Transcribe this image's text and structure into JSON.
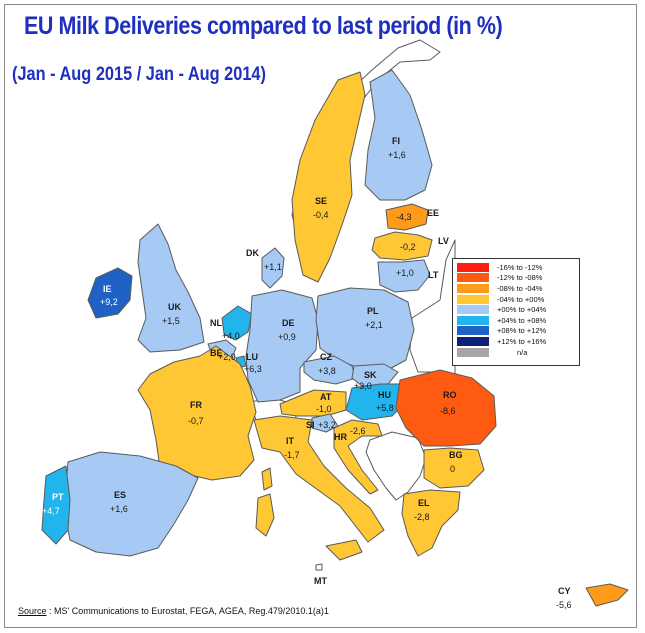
{
  "title": "EU Milk Deliveries compared to last period (in %)",
  "subtitle": "(Jan - Aug 2015 / Jan - Aug 2014)",
  "source": {
    "label": "Source",
    "text": ": MS' Communications to Eurostat, FEGA, AGEA, Reg.479/2010.1(a)1"
  },
  "legend": [
    {
      "label": "-16%  to  -12%",
      "color": "#ff1f10"
    },
    {
      "label": "-12%  to  -08%",
      "color": "#ff5a12"
    },
    {
      "label": "-08%  to  -04%",
      "color": "#ff9a1a"
    },
    {
      "label": "-04%  to  +00%",
      "color": "#ffc733"
    },
    {
      "label": "+00%  to  +04%",
      "color": "#a6caf4"
    },
    {
      "label": "+04%  to  +08%",
      "color": "#22b4ec"
    },
    {
      "label": "+08%  to  +12%",
      "color": "#1f61c4"
    },
    {
      "label": "+12%  to  +16%",
      "color": "#10207a"
    },
    {
      "label": "n/a",
      "color": "#a6a6a6"
    }
  ],
  "countries": [
    {
      "code": "FI",
      "value": "+1,6",
      "color": "#a6caf4"
    },
    {
      "code": "SE",
      "value": "-0,4",
      "color": "#ffc733"
    },
    {
      "code": "EE",
      "value": "-4,3",
      "color": "#ff9a1a"
    },
    {
      "code": "LV",
      "value": "-0,2",
      "color": "#ffc733"
    },
    {
      "code": "LT",
      "value": "+1,0",
      "color": "#a6caf4"
    },
    {
      "code": "DK",
      "value": "+1,1",
      "color": "#a6caf4"
    },
    {
      "code": "IE",
      "value": "+9,2",
      "color": "#1f61c4"
    },
    {
      "code": "UK",
      "value": "+1,5",
      "color": "#a6caf4"
    },
    {
      "code": "NL",
      "value": "+4,0",
      "color": "#22b4ec"
    },
    {
      "code": "BE",
      "value": "+2,9",
      "color": "#a6caf4"
    },
    {
      "code": "LU",
      "value": "+6,3",
      "color": "#22b4ec"
    },
    {
      "code": "DE",
      "value": "+0,9",
      "color": "#a6caf4"
    },
    {
      "code": "PL",
      "value": "+2,1",
      "color": "#a6caf4"
    },
    {
      "code": "CZ",
      "value": "+3,8",
      "color": "#a6caf4"
    },
    {
      "code": "SK",
      "value": "+3,0",
      "color": "#a6caf4"
    },
    {
      "code": "HU",
      "value": "+5,8",
      "color": "#22b4ec"
    },
    {
      "code": "RO",
      "value": "-8,6",
      "color": "#ff5a12"
    },
    {
      "code": "AT",
      "value": "-1,0",
      "color": "#ffc733"
    },
    {
      "code": "SI",
      "value": "+3,2",
      "color": "#a6caf4"
    },
    {
      "code": "HR",
      "value": "-2,6",
      "color": "#ffc733"
    },
    {
      "code": "FR",
      "value": "-0,7",
      "color": "#ffc733"
    },
    {
      "code": "IT",
      "value": "-1,7",
      "color": "#ffc733"
    },
    {
      "code": "BG",
      "value": "0",
      "color": "#ffc733"
    },
    {
      "code": "EL",
      "value": "-2,8",
      "color": "#ffc733"
    },
    {
      "code": "ES",
      "value": "+1,6",
      "color": "#a6caf4"
    },
    {
      "code": "PT",
      "value": "+4,7",
      "color": "#22b4ec"
    },
    {
      "code": "MT",
      "value": "",
      "color": "#ffffff"
    },
    {
      "code": "CY",
      "value": "-5,6",
      "color": "#ff9a1a"
    }
  ]
}
